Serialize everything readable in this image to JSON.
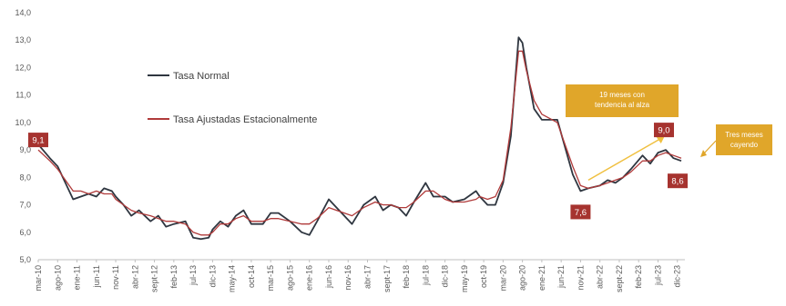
{
  "chart_data": {
    "type": "line",
    "title": "",
    "xlabel": "",
    "ylabel": "",
    "ylim": [
      5.0,
      14.0
    ],
    "ytick_step": 1.0,
    "y_decimal_separator": ",",
    "grid": false,
    "legend_placement": "top-left",
    "x_labels": [
      "mar-10",
      "ago-10",
      "ene-11",
      "jun-11",
      "nov-11",
      "abr-12",
      "sept-12",
      "feb-13",
      "jul-13",
      "dic-13",
      "may-14",
      "oct-14",
      "mar-15",
      "ago-15",
      "ene-16",
      "jun-16",
      "nov-16",
      "abr-17",
      "sept-17",
      "feb-18",
      "jul-18",
      "dic-18",
      "may-19",
      "oct-19",
      "mar-20",
      "ago-20",
      "ene-21",
      "jun-21",
      "nov-21",
      "abr-22",
      "sept-22",
      "feb-23",
      "jul-23",
      "dic-23"
    ],
    "series": [
      {
        "name": "Tasa Normal",
        "color": "#2f3640",
        "anchors": [
          [
            "mar-10",
            9.2
          ],
          [
            "jun-10",
            8.7
          ],
          [
            "ago-10",
            8.4
          ],
          [
            "oct-10",
            7.8
          ],
          [
            "dic-10",
            7.2
          ],
          [
            "feb-11",
            7.3
          ],
          [
            "abr-11",
            7.4
          ],
          [
            "jun-11",
            7.3
          ],
          [
            "ago-11",
            7.6
          ],
          [
            "oct-11",
            7.5
          ],
          [
            "nov-11",
            7.3
          ],
          [
            "ene-12",
            7.0
          ],
          [
            "mar-12",
            6.6
          ],
          [
            "may-12",
            6.8
          ],
          [
            "ago-12",
            6.4
          ],
          [
            "oct-12",
            6.6
          ],
          [
            "dic-12",
            6.2
          ],
          [
            "feb-13",
            6.3
          ],
          [
            "may-13",
            6.4
          ],
          [
            "jul-13",
            5.8
          ],
          [
            "sept-13",
            5.75
          ],
          [
            "nov-13",
            5.8
          ],
          [
            "dic-13",
            6.1
          ],
          [
            "feb-14",
            6.4
          ],
          [
            "abr-14",
            6.2
          ],
          [
            "jun-14",
            6.6
          ],
          [
            "ago-14",
            6.8
          ],
          [
            "oct-14",
            6.3
          ],
          [
            "ene-15",
            6.3
          ],
          [
            "mar-15",
            6.7
          ],
          [
            "may-15",
            6.7
          ],
          [
            "ago-15",
            6.4
          ],
          [
            "nov-15",
            6.0
          ],
          [
            "ene-16",
            5.9
          ],
          [
            "mar-16",
            6.4
          ],
          [
            "jun-16",
            7.2
          ],
          [
            "ago-16",
            6.9
          ],
          [
            "oct-16",
            6.6
          ],
          [
            "dic-16",
            6.3
          ],
          [
            "mar-17",
            7.0
          ],
          [
            "jun-17",
            7.3
          ],
          [
            "ago-17",
            6.8
          ],
          [
            "oct-17",
            7.0
          ],
          [
            "dic-17",
            6.9
          ],
          [
            "feb-18",
            6.6
          ],
          [
            "abr-18",
            7.1
          ],
          [
            "jul-18",
            7.8
          ],
          [
            "sept-18",
            7.3
          ],
          [
            "dic-18",
            7.3
          ],
          [
            "feb-19",
            7.1
          ],
          [
            "may-19",
            7.2
          ],
          [
            "ago-19",
            7.5
          ],
          [
            "sept-19",
            7.3
          ],
          [
            "nov-19",
            7.0
          ],
          [
            "ene-20",
            7.0
          ],
          [
            "mar-20",
            7.8
          ],
          [
            "may-20",
            9.5
          ],
          [
            "jul-20",
            13.1
          ],
          [
            "ago-20",
            12.9
          ],
          [
            "sept-20",
            12.0
          ],
          [
            "nov-20",
            10.5
          ],
          [
            "ene-21",
            10.1
          ],
          [
            "may-21",
            10.1
          ],
          [
            "jul-21",
            9.1
          ],
          [
            "sept-21",
            8.1
          ],
          [
            "nov-21",
            7.5
          ],
          [
            "ene-22",
            7.6
          ],
          [
            "abr-22",
            7.7
          ],
          [
            "jun-22",
            7.9
          ],
          [
            "ago-22",
            7.8
          ],
          [
            "oct-22",
            8.0
          ],
          [
            "dic-22",
            8.3
          ],
          [
            "mar-23",
            8.8
          ],
          [
            "may-23",
            8.5
          ],
          [
            "jul-23",
            8.9
          ],
          [
            "sept-23",
            9.0
          ],
          [
            "nov-23",
            8.7
          ],
          [
            "ene-24",
            8.6
          ]
        ]
      },
      {
        "name": "Tasa Ajustadas Estacionalmente",
        "color": "#b03a3a",
        "anchors": [
          [
            "mar-10",
            9.0
          ],
          [
            "jun-10",
            8.6
          ],
          [
            "ago-10",
            8.3
          ],
          [
            "oct-10",
            7.9
          ],
          [
            "dic-10",
            7.5
          ],
          [
            "feb-11",
            7.5
          ],
          [
            "abr-11",
            7.4
          ],
          [
            "jun-11",
            7.5
          ],
          [
            "ago-11",
            7.4
          ],
          [
            "oct-11",
            7.4
          ],
          [
            "nov-11",
            7.2
          ],
          [
            "ene-12",
            7.0
          ],
          [
            "mar-12",
            6.8
          ],
          [
            "may-12",
            6.7
          ],
          [
            "ago-12",
            6.6
          ],
          [
            "oct-12",
            6.5
          ],
          [
            "dic-12",
            6.4
          ],
          [
            "feb-13",
            6.4
          ],
          [
            "may-13",
            6.3
          ],
          [
            "jul-13",
            6.0
          ],
          [
            "sept-13",
            5.9
          ],
          [
            "nov-13",
            5.9
          ],
          [
            "dic-13",
            6.0
          ],
          [
            "feb-14",
            6.3
          ],
          [
            "abr-14",
            6.3
          ],
          [
            "jun-14",
            6.5
          ],
          [
            "ago-14",
            6.6
          ],
          [
            "oct-14",
            6.4
          ],
          [
            "ene-15",
            6.4
          ],
          [
            "mar-15",
            6.5
          ],
          [
            "may-15",
            6.5
          ],
          [
            "ago-15",
            6.4
          ],
          [
            "nov-15",
            6.3
          ],
          [
            "ene-16",
            6.3
          ],
          [
            "mar-16",
            6.5
          ],
          [
            "jun-16",
            6.9
          ],
          [
            "ago-16",
            6.8
          ],
          [
            "oct-16",
            6.7
          ],
          [
            "dic-16",
            6.6
          ],
          [
            "mar-17",
            6.9
          ],
          [
            "jun-17",
            7.1
          ],
          [
            "ago-17",
            7.0
          ],
          [
            "oct-17",
            7.0
          ],
          [
            "dic-17",
            6.9
          ],
          [
            "feb-18",
            6.9
          ],
          [
            "abr-18",
            7.1
          ],
          [
            "jul-18",
            7.5
          ],
          [
            "sept-18",
            7.5
          ],
          [
            "dic-18",
            7.2
          ],
          [
            "feb-19",
            7.1
          ],
          [
            "may-19",
            7.1
          ],
          [
            "ago-19",
            7.2
          ],
          [
            "sept-19",
            7.3
          ],
          [
            "nov-19",
            7.2
          ],
          [
            "ene-20",
            7.3
          ],
          [
            "mar-20",
            7.9
          ],
          [
            "may-20",
            9.8
          ],
          [
            "jul-20",
            12.6
          ],
          [
            "ago-20",
            12.6
          ],
          [
            "sept-20",
            11.9
          ],
          [
            "nov-20",
            10.8
          ],
          [
            "ene-21",
            10.3
          ],
          [
            "may-21",
            10.0
          ],
          [
            "jul-21",
            9.2
          ],
          [
            "sept-21",
            8.4
          ],
          [
            "nov-21",
            7.7
          ],
          [
            "ene-22",
            7.6
          ],
          [
            "abr-22",
            7.7
          ],
          [
            "jun-22",
            7.8
          ],
          [
            "ago-22",
            7.9
          ],
          [
            "oct-22",
            8.0
          ],
          [
            "dic-22",
            8.2
          ],
          [
            "mar-23",
            8.6
          ],
          [
            "may-23",
            8.6
          ],
          [
            "jul-23",
            8.8
          ],
          [
            "sept-23",
            8.9
          ],
          [
            "nov-23",
            8.8
          ],
          [
            "ene-24",
            8.7
          ]
        ]
      }
    ],
    "value_labels": [
      {
        "text": "9,1",
        "date": "mar-10",
        "value": 9.1
      },
      {
        "text": "7,6",
        "date": "nov-21",
        "value": 7.6
      },
      {
        "text": "9,0",
        "date": "sept-23",
        "value": 9.0
      },
      {
        "text": "8,6",
        "date": "ene-24",
        "value": 8.6
      }
    ],
    "annotations": [
      {
        "text_lines": [
          "19 meses con",
          "tendencia al alza"
        ],
        "color": "#e0a62a"
      },
      {
        "text_lines": [
          "Tres meses",
          "cayendo"
        ],
        "color": "#e0a62a"
      }
    ],
    "label_box_color": "#a6332f"
  }
}
